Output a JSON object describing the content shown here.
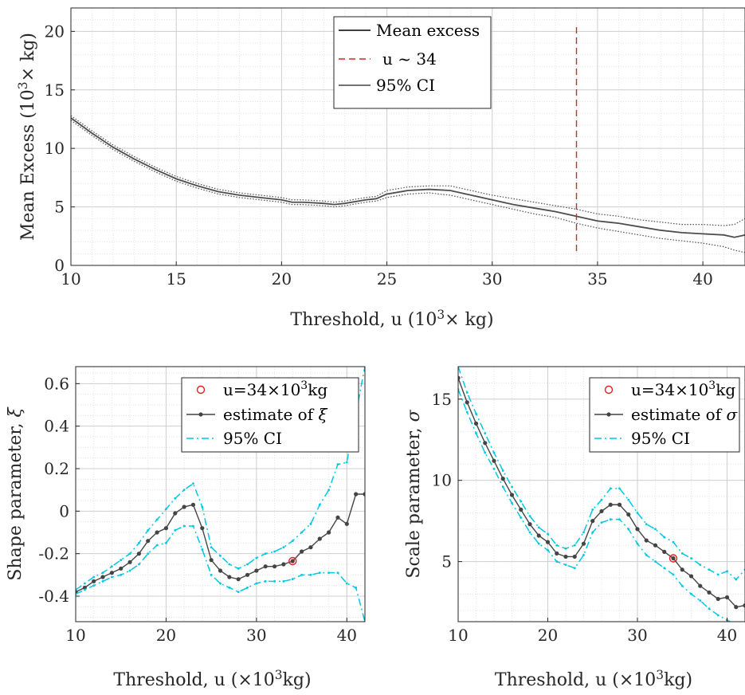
{
  "chart_data": [
    {
      "type": "line",
      "xlabel": "Threshold, u (10³× kg)",
      "ylabel": "Mean Excess (10³× kg)",
      "xlim": [
        10,
        42
      ],
      "ylim": [
        0,
        22
      ],
      "xticks": [
        10,
        15,
        20,
        25,
        30,
        35,
        40
      ],
      "yticks": [
        0,
        5,
        10,
        15,
        20
      ],
      "grid": "minor",
      "legend_position": "top-center",
      "vline": {
        "x": 34,
        "label": "u ~ 34",
        "color": "#d62728"
      },
      "legend": [
        "Mean excess",
        "u ~ 34",
        "95% CI"
      ],
      "series": [
        {
          "name": "Mean excess",
          "color": "#4d4d4d",
          "x": [
            10,
            11,
            12,
            13,
            14,
            15,
            16,
            17,
            18,
            19,
            20,
            20.5,
            21,
            22,
            22.5,
            23,
            24,
            24.5,
            25,
            26,
            27,
            28,
            29,
            30,
            31,
            32,
            33,
            34,
            35,
            36,
            37,
            38,
            39,
            40,
            41,
            41.5,
            42
          ],
          "y": [
            12.6,
            11.3,
            10.1,
            9.1,
            8.2,
            7.4,
            6.8,
            6.3,
            6.0,
            5.8,
            5.6,
            5.4,
            5.4,
            5.3,
            5.2,
            5.3,
            5.6,
            5.7,
            6.1,
            6.4,
            6.5,
            6.4,
            6.0,
            5.6,
            5.2,
            4.9,
            4.6,
            4.2,
            3.8,
            3.6,
            3.3,
            3.0,
            2.8,
            2.7,
            2.6,
            2.4,
            2.6
          ]
        },
        {
          "name": "95% CI upper",
          "color": "#4d4d4d",
          "x": [
            10,
            11,
            12,
            13,
            14,
            15,
            16,
            17,
            18,
            19,
            20,
            20.5,
            21,
            22,
            22.5,
            23,
            24,
            24.5,
            25,
            26,
            27,
            28,
            29,
            30,
            31,
            32,
            33,
            34,
            35,
            36,
            37,
            38,
            39,
            40,
            41,
            41.5,
            42
          ],
          "y": [
            12.8,
            11.5,
            10.3,
            9.3,
            8.4,
            7.6,
            7.0,
            6.5,
            6.2,
            6.0,
            5.8,
            5.6,
            5.6,
            5.5,
            5.4,
            5.5,
            5.8,
            5.9,
            6.4,
            6.7,
            6.8,
            6.8,
            6.4,
            6.0,
            5.7,
            5.4,
            5.1,
            4.8,
            4.4,
            4.2,
            3.9,
            3.7,
            3.5,
            3.5,
            3.4,
            3.5,
            4.0
          ]
        },
        {
          "name": "95% CI lower",
          "color": "#4d4d4d",
          "x": [
            10,
            11,
            12,
            13,
            14,
            15,
            16,
            17,
            18,
            19,
            20,
            20.5,
            21,
            22,
            22.5,
            23,
            24,
            24.5,
            25,
            26,
            27,
            28,
            29,
            30,
            31,
            32,
            33,
            34,
            35,
            36,
            37,
            38,
            39,
            40,
            41,
            41.5,
            42
          ],
          "y": [
            12.4,
            11.1,
            9.9,
            8.9,
            8.0,
            7.2,
            6.6,
            6.1,
            5.8,
            5.6,
            5.4,
            5.2,
            5.2,
            5.1,
            5.0,
            5.1,
            5.4,
            5.5,
            5.8,
            6.1,
            6.2,
            6.0,
            5.6,
            5.2,
            4.8,
            4.4,
            4.1,
            3.6,
            3.2,
            2.9,
            2.6,
            2.3,
            2.1,
            1.9,
            1.6,
            1.3,
            1.1
          ]
        }
      ]
    },
    {
      "type": "line",
      "xlabel": "Threshold, u (×10³kg)",
      "ylabel": "Shape parameter, ξ",
      "xlim": [
        10,
        42
      ],
      "ylim": [
        -0.52,
        0.68
      ],
      "xticks": [
        10,
        20,
        30,
        40
      ],
      "yticks": [
        -0.4,
        -0.2,
        0,
        0.2,
        0.4,
        0.6
      ],
      "grid": "minor",
      "legend_position": "top-right",
      "legend": [
        "u=34×10³kg",
        "estimate of ξ",
        "95% CI"
      ],
      "highlight": {
        "x": 34,
        "y": -0.235
      },
      "x": [
        10,
        11,
        12,
        13,
        14,
        15,
        16,
        17,
        18,
        19,
        20,
        21,
        22,
        23,
        24,
        25,
        26,
        27,
        28,
        29,
        30,
        31,
        32,
        33,
        34,
        35,
        36,
        37,
        38,
        39,
        40,
        41,
        42
      ],
      "series": [
        {
          "name": "estimate of ξ",
          "color": "#444444",
          "y": [
            -0.38,
            -0.36,
            -0.33,
            -0.31,
            -0.29,
            -0.27,
            -0.24,
            -0.2,
            -0.14,
            -0.1,
            -0.08,
            -0.01,
            0.02,
            0.03,
            -0.08,
            -0.23,
            -0.28,
            -0.31,
            -0.32,
            -0.3,
            -0.28,
            -0.26,
            -0.26,
            -0.25,
            -0.235,
            -0.19,
            -0.17,
            -0.13,
            -0.1,
            -0.03,
            -0.06,
            0.08,
            0.08
          ]
        },
        {
          "name": "95% CI upper",
          "color": "#00c8e0",
          "y": [
            -0.37,
            -0.34,
            -0.31,
            -0.29,
            -0.26,
            -0.23,
            -0.2,
            -0.15,
            -0.09,
            -0.04,
            0.01,
            0.06,
            0.1,
            0.13,
            0.02,
            -0.17,
            -0.21,
            -0.25,
            -0.27,
            -0.25,
            -0.22,
            -0.2,
            -0.19,
            -0.17,
            -0.14,
            -0.1,
            -0.06,
            0.03,
            0.1,
            0.22,
            0.23,
            0.46,
            0.68
          ]
        },
        {
          "name": "95% CI lower",
          "color": "#00c8e0",
          "y": [
            -0.39,
            -0.37,
            -0.35,
            -0.33,
            -0.31,
            -0.3,
            -0.28,
            -0.25,
            -0.2,
            -0.16,
            -0.15,
            -0.09,
            -0.07,
            -0.07,
            -0.18,
            -0.3,
            -0.34,
            -0.36,
            -0.38,
            -0.36,
            -0.34,
            -0.33,
            -0.33,
            -0.33,
            -0.32,
            -0.3,
            -0.3,
            -0.29,
            -0.29,
            -0.29,
            -0.34,
            -0.36,
            -0.52
          ]
        }
      ]
    },
    {
      "type": "line",
      "xlabel": "Threshold, u (×10³kg)",
      "ylabel": "Scale parameter, σ",
      "xlim": [
        10,
        42
      ],
      "ylim": [
        1.3,
        17
      ],
      "xticks": [
        10,
        20,
        30,
        40
      ],
      "yticks": [
        5,
        10,
        15
      ],
      "grid": "minor",
      "legend_position": "top-right",
      "legend": [
        "u=34×10³kg",
        "estimate of σ",
        "95% CI"
      ],
      "highlight": {
        "x": 34,
        "y": 5.2
      },
      "x": [
        10,
        11,
        12,
        13,
        14,
        15,
        16,
        17,
        18,
        19,
        20,
        21,
        22,
        23,
        24,
        25,
        26,
        27,
        28,
        29,
        30,
        31,
        32,
        33,
        34,
        35,
        36,
        37,
        38,
        39,
        40,
        41,
        42
      ],
      "series": [
        {
          "name": "estimate of σ",
          "color": "#444444",
          "y": [
            16.3,
            14.8,
            13.5,
            12.3,
            11.2,
            10.1,
            9.1,
            8.2,
            7.3,
            6.6,
            6.2,
            5.5,
            5.3,
            5.3,
            6.1,
            7.5,
            8.1,
            8.5,
            8.5,
            7.9,
            7.0,
            6.3,
            6.0,
            5.6,
            5.2,
            4.5,
            4.1,
            3.5,
            3.1,
            2.7,
            2.8,
            2.2,
            2.3
          ]
        },
        {
          "name": "95% CI upper",
          "color": "#00c8e0",
          "y": [
            17.0,
            15.4,
            14.1,
            12.9,
            11.7,
            10.6,
            9.6,
            8.7,
            7.8,
            7.1,
            6.7,
            6.0,
            5.8,
            6.0,
            6.8,
            8.2,
            8.8,
            9.5,
            9.5,
            8.8,
            8.0,
            7.3,
            7.0,
            6.5,
            6.2,
            5.5,
            5.2,
            4.8,
            4.5,
            4.2,
            4.4,
            3.9,
            4.5
          ]
        },
        {
          "name": "95% CI lower",
          "color": "#00c8e0",
          "y": [
            15.6,
            14.2,
            12.9,
            11.7,
            10.7,
            9.6,
            8.6,
            7.7,
            6.8,
            6.1,
            5.7,
            5.0,
            4.8,
            4.6,
            5.4,
            6.8,
            7.4,
            7.6,
            7.6,
            7.0,
            6.1,
            5.4,
            5.0,
            4.6,
            4.2,
            3.5,
            3.0,
            2.6,
            2.1,
            1.7,
            1.4,
            1.1,
            0.9
          ]
        }
      ]
    }
  ]
}
